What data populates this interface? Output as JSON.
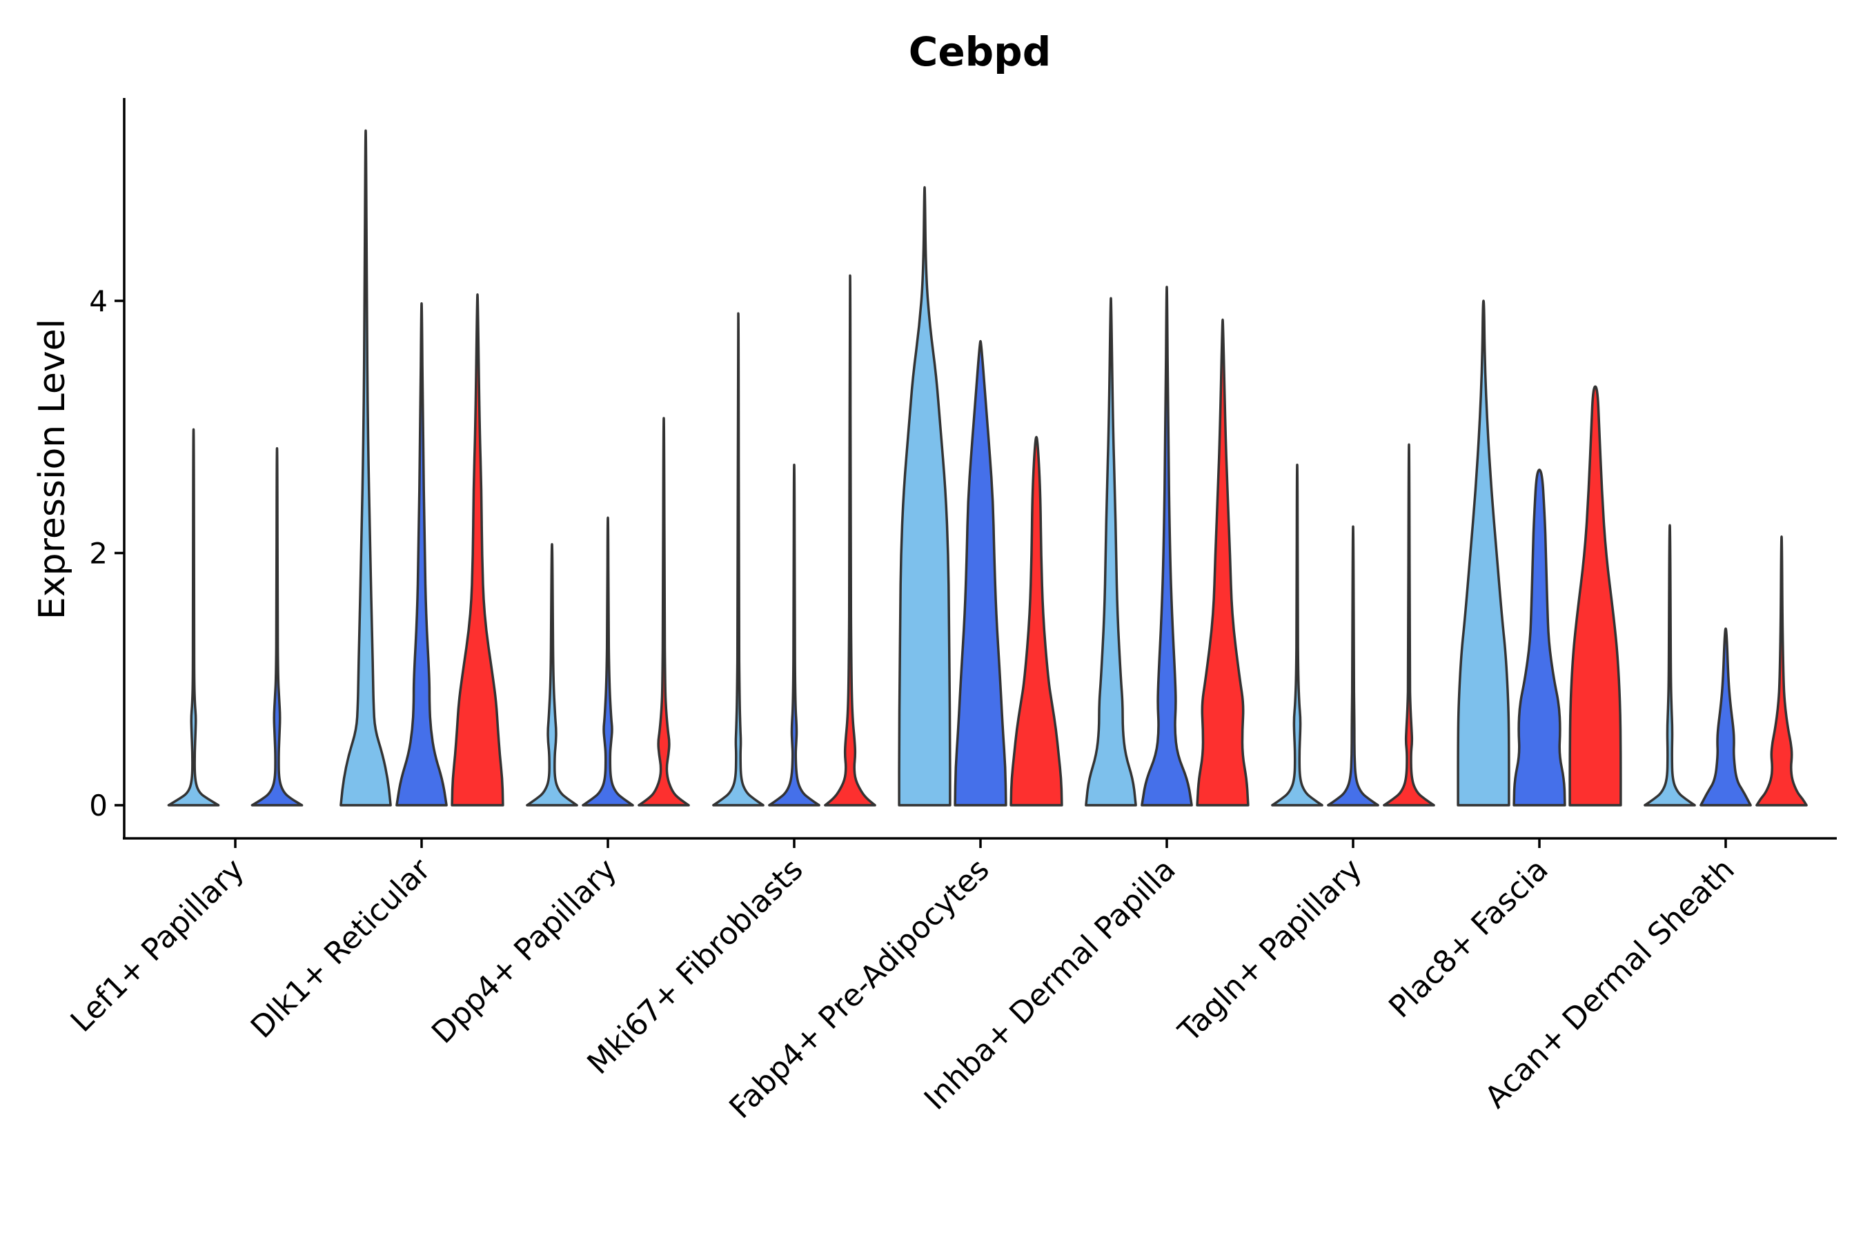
{
  "chart_data": {
    "type": "violin",
    "title": "Cebpd",
    "xlabel": "",
    "ylabel": "Expression Level",
    "ylim": [
      -0.27,
      5.6
    ],
    "yticks": [
      0,
      2,
      4
    ],
    "colors": {
      "group1": "#7dc0ec",
      "group2": "#4570ea",
      "group3": "#fd302f",
      "outline": "#333333",
      "axis": "#000000"
    },
    "categories": [
      "Lef1+ Papillary",
      "Dlk1+ Reticular",
      "Dpp4+ Papillary",
      "Mki67+ Fibroblasts",
      "Fabp4+ Pre-Adipocytes",
      "Inhba+ Dermal Papilla",
      "Tagln+ Papillary",
      "Plac8+ Fascia",
      "Acan+ Dermal Sheath"
    ],
    "violins": [
      {
        "cat": 0,
        "group": 1,
        "max": 2.98,
        "profile": [
          [
            0,
            0.95
          ],
          [
            0.05,
            0.55
          ],
          [
            0.1,
            0.2
          ],
          [
            0.2,
            0.05
          ],
          [
            0.4,
            0.04
          ],
          [
            0.6,
            0.08
          ],
          [
            0.7,
            0.09
          ],
          [
            0.8,
            0.05
          ],
          [
            1.0,
            0.025
          ],
          [
            1.5,
            0.02
          ],
          [
            2.98,
            0.01
          ]
        ]
      },
      {
        "cat": 0,
        "group": 2,
        "max": 2.83,
        "profile": [
          [
            0,
            0.95
          ],
          [
            0.05,
            0.55
          ],
          [
            0.1,
            0.25
          ],
          [
            0.2,
            0.07
          ],
          [
            0.4,
            0.06
          ],
          [
            0.55,
            0.09
          ],
          [
            0.7,
            0.12
          ],
          [
            0.85,
            0.08
          ],
          [
            1.0,
            0.04
          ],
          [
            1.5,
            0.02
          ],
          [
            2.83,
            0.01
          ]
        ]
      },
      {
        "cat": 1,
        "group": 1,
        "max": 5.35,
        "profile": [
          [
            0,
            0.95
          ],
          [
            0.2,
            0.85
          ],
          [
            0.4,
            0.65
          ],
          [
            0.6,
            0.35
          ],
          [
            0.8,
            0.3
          ],
          [
            1.0,
            0.28
          ],
          [
            1.3,
            0.25
          ],
          [
            2.0,
            0.17
          ],
          [
            3.0,
            0.08
          ],
          [
            4.0,
            0.04
          ],
          [
            5.35,
            0.01
          ]
        ]
      },
      {
        "cat": 1,
        "group": 2,
        "max": 3.98,
        "profile": [
          [
            0,
            0.95
          ],
          [
            0.2,
            0.8
          ],
          [
            0.4,
            0.5
          ],
          [
            0.6,
            0.35
          ],
          [
            0.8,
            0.3
          ],
          [
            1.0,
            0.3
          ],
          [
            1.5,
            0.17
          ],
          [
            2.0,
            0.12
          ],
          [
            3.0,
            0.05
          ],
          [
            3.98,
            0.01
          ]
        ]
      },
      {
        "cat": 1,
        "group": 3,
        "max": 4.05,
        "profile": [
          [
            0,
            0.97
          ],
          [
            0.2,
            0.95
          ],
          [
            0.4,
            0.85
          ],
          [
            0.6,
            0.78
          ],
          [
            0.8,
            0.72
          ],
          [
            1.0,
            0.6
          ],
          [
            1.5,
            0.25
          ],
          [
            2.0,
            0.17
          ],
          [
            2.5,
            0.15
          ],
          [
            3.0,
            0.08
          ],
          [
            4.05,
            0.01
          ]
        ]
      },
      {
        "cat": 2,
        "group": 1,
        "max": 2.07,
        "profile": [
          [
            0,
            0.95
          ],
          [
            0.05,
            0.6
          ],
          [
            0.1,
            0.3
          ],
          [
            0.2,
            0.1
          ],
          [
            0.4,
            0.1
          ],
          [
            0.5,
            0.15
          ],
          [
            0.6,
            0.16
          ],
          [
            0.7,
            0.12
          ],
          [
            1.0,
            0.05
          ],
          [
            1.5,
            0.03
          ],
          [
            2.07,
            0.01
          ]
        ]
      },
      {
        "cat": 2,
        "group": 2,
        "max": 2.28,
        "profile": [
          [
            0,
            0.95
          ],
          [
            0.05,
            0.6
          ],
          [
            0.1,
            0.3
          ],
          [
            0.2,
            0.1
          ],
          [
            0.4,
            0.08
          ],
          [
            0.5,
            0.12
          ],
          [
            0.6,
            0.17
          ],
          [
            0.7,
            0.12
          ],
          [
            1.0,
            0.05
          ],
          [
            1.5,
            0.02
          ],
          [
            2.28,
            0.01
          ]
        ]
      },
      {
        "cat": 2,
        "group": 3,
        "max": 3.07,
        "profile": [
          [
            0,
            0.95
          ],
          [
            0.05,
            0.6
          ],
          [
            0.1,
            0.35
          ],
          [
            0.2,
            0.15
          ],
          [
            0.3,
            0.1
          ],
          [
            0.4,
            0.18
          ],
          [
            0.5,
            0.22
          ],
          [
            0.6,
            0.15
          ],
          [
            0.8,
            0.07
          ],
          [
            1.0,
            0.05
          ],
          [
            1.5,
            0.03
          ],
          [
            3.07,
            0.01
          ]
        ]
      },
      {
        "cat": 3,
        "group": 1,
        "max": 3.9,
        "profile": [
          [
            0,
            0.95
          ],
          [
            0.05,
            0.6
          ],
          [
            0.1,
            0.3
          ],
          [
            0.2,
            0.1
          ],
          [
            0.4,
            0.08
          ],
          [
            0.5,
            0.1
          ],
          [
            0.6,
            0.08
          ],
          [
            0.8,
            0.05
          ],
          [
            1.5,
            0.02
          ],
          [
            3.9,
            0.01
          ]
        ]
      },
      {
        "cat": 3,
        "group": 2,
        "max": 2.7,
        "profile": [
          [
            0,
            0.95
          ],
          [
            0.05,
            0.6
          ],
          [
            0.1,
            0.3
          ],
          [
            0.2,
            0.1
          ],
          [
            0.4,
            0.05
          ],
          [
            0.5,
            0.08
          ],
          [
            0.6,
            0.1
          ],
          [
            0.8,
            0.04
          ],
          [
            1.5,
            0.02
          ],
          [
            2.7,
            0.01
          ]
        ]
      },
      {
        "cat": 3,
        "group": 3,
        "max": 4.2,
        "profile": [
          [
            0,
            0.95
          ],
          [
            0.05,
            0.65
          ],
          [
            0.1,
            0.45
          ],
          [
            0.2,
            0.2
          ],
          [
            0.3,
            0.15
          ],
          [
            0.4,
            0.2
          ],
          [
            0.5,
            0.18
          ],
          [
            0.7,
            0.09
          ],
          [
            1.0,
            0.05
          ],
          [
            2.0,
            0.02
          ],
          [
            4.2,
            0.01
          ]
        ]
      },
      {
        "cat": 4,
        "group": 1,
        "max": 4.9,
        "profile": [
          [
            0,
            0.97
          ],
          [
            0.5,
            0.97
          ],
          [
            1.0,
            0.95
          ],
          [
            1.5,
            0.93
          ],
          [
            2.0,
            0.9
          ],
          [
            2.5,
            0.8
          ],
          [
            3.0,
            0.6
          ],
          [
            3.4,
            0.45
          ],
          [
            3.8,
            0.2
          ],
          [
            4.2,
            0.05
          ],
          [
            4.9,
            0.01
          ]
        ]
      },
      {
        "cat": 4,
        "group": 2,
        "max": 3.68,
        "profile": [
          [
            0,
            0.97
          ],
          [
            0.3,
            0.95
          ],
          [
            0.6,
            0.85
          ],
          [
            1.0,
            0.75
          ],
          [
            1.5,
            0.6
          ],
          [
            2.0,
            0.52
          ],
          [
            2.4,
            0.48
          ],
          [
            2.8,
            0.35
          ],
          [
            3.2,
            0.2
          ],
          [
            3.68,
            0.02
          ]
        ]
      },
      {
        "cat": 4,
        "group": 3,
        "max": 2.92,
        "profile": [
          [
            0,
            0.97
          ],
          [
            0.2,
            0.95
          ],
          [
            0.4,
            0.85
          ],
          [
            0.6,
            0.75
          ],
          [
            0.8,
            0.6
          ],
          [
            1.0,
            0.45
          ],
          [
            1.5,
            0.25
          ],
          [
            2.0,
            0.18
          ],
          [
            2.5,
            0.15
          ],
          [
            2.92,
            0.04
          ]
        ]
      },
      {
        "cat": 5,
        "group": 1,
        "max": 4.02,
        "profile": [
          [
            0,
            0.95
          ],
          [
            0.2,
            0.85
          ],
          [
            0.4,
            0.55
          ],
          [
            0.6,
            0.45
          ],
          [
            0.8,
            0.45
          ],
          [
            1.0,
            0.38
          ],
          [
            1.5,
            0.25
          ],
          [
            2.0,
            0.2
          ],
          [
            2.5,
            0.15
          ],
          [
            3.0,
            0.08
          ],
          [
            4.02,
            0.01
          ]
        ]
      },
      {
        "cat": 5,
        "group": 2,
        "max": 4.11,
        "profile": [
          [
            0,
            0.95
          ],
          [
            0.2,
            0.8
          ],
          [
            0.4,
            0.4
          ],
          [
            0.6,
            0.3
          ],
          [
            0.8,
            0.35
          ],
          [
            1.0,
            0.32
          ],
          [
            1.5,
            0.2
          ],
          [
            2.0,
            0.12
          ],
          [
            3.0,
            0.05
          ],
          [
            4.11,
            0.01
          ]
        ]
      },
      {
        "cat": 5,
        "group": 3,
        "max": 3.85,
        "profile": [
          [
            0,
            0.97
          ],
          [
            0.2,
            0.92
          ],
          [
            0.4,
            0.75
          ],
          [
            0.6,
            0.75
          ],
          [
            0.8,
            0.8
          ],
          [
            1.0,
            0.65
          ],
          [
            1.5,
            0.35
          ],
          [
            2.0,
            0.28
          ],
          [
            2.5,
            0.18
          ],
          [
            3.0,
            0.1
          ],
          [
            3.85,
            0.01
          ]
        ]
      },
      {
        "cat": 6,
        "group": 1,
        "max": 2.7,
        "profile": [
          [
            0,
            0.95
          ],
          [
            0.05,
            0.6
          ],
          [
            0.1,
            0.3
          ],
          [
            0.2,
            0.1
          ],
          [
            0.4,
            0.08
          ],
          [
            0.6,
            0.12
          ],
          [
            0.7,
            0.12
          ],
          [
            0.8,
            0.08
          ],
          [
            1.0,
            0.04
          ],
          [
            1.5,
            0.02
          ],
          [
            2.7,
            0.01
          ]
        ]
      },
      {
        "cat": 6,
        "group": 2,
        "max": 2.21,
        "profile": [
          [
            0,
            0.95
          ],
          [
            0.05,
            0.6
          ],
          [
            0.1,
            0.3
          ],
          [
            0.2,
            0.1
          ],
          [
            0.4,
            0.05
          ],
          [
            0.6,
            0.05
          ],
          [
            0.8,
            0.04
          ],
          [
            1.0,
            0.03
          ],
          [
            2.21,
            0.01
          ]
        ]
      },
      {
        "cat": 6,
        "group": 3,
        "max": 2.86,
        "profile": [
          [
            0,
            0.95
          ],
          [
            0.05,
            0.6
          ],
          [
            0.1,
            0.3
          ],
          [
            0.2,
            0.1
          ],
          [
            0.4,
            0.07
          ],
          [
            0.5,
            0.12
          ],
          [
            0.6,
            0.1
          ],
          [
            0.8,
            0.05
          ],
          [
            1.0,
            0.03
          ],
          [
            2.86,
            0.01
          ]
        ]
      },
      {
        "cat": 7,
        "group": 1,
        "max": 4.0,
        "profile": [
          [
            0,
            0.97
          ],
          [
            0.5,
            0.97
          ],
          [
            0.8,
            0.95
          ],
          [
            1.2,
            0.85
          ],
          [
            1.5,
            0.7
          ],
          [
            2.0,
            0.5
          ],
          [
            2.5,
            0.3
          ],
          [
            3.0,
            0.15
          ],
          [
            3.5,
            0.05
          ],
          [
            4.0,
            0.02
          ]
        ]
      },
      {
        "cat": 7,
        "group": 2,
        "max": 2.66,
        "profile": [
          [
            0,
            0.97
          ],
          [
            0.2,
            0.95
          ],
          [
            0.4,
            0.75
          ],
          [
            0.6,
            0.8
          ],
          [
            0.8,
            0.75
          ],
          [
            1.0,
            0.55
          ],
          [
            1.3,
            0.35
          ],
          [
            1.6,
            0.3
          ],
          [
            2.0,
            0.25
          ],
          [
            2.3,
            0.2
          ],
          [
            2.66,
            0.1
          ]
        ]
      },
      {
        "cat": 7,
        "group": 3,
        "max": 3.32,
        "profile": [
          [
            0,
            0.97
          ],
          [
            0.4,
            0.97
          ],
          [
            0.8,
            0.95
          ],
          [
            1.2,
            0.85
          ],
          [
            1.5,
            0.7
          ],
          [
            2.0,
            0.4
          ],
          [
            2.5,
            0.25
          ],
          [
            3.0,
            0.15
          ],
          [
            3.32,
            0.08
          ]
        ]
      },
      {
        "cat": 8,
        "group": 1,
        "max": 2.22,
        "profile": [
          [
            0,
            0.95
          ],
          [
            0.05,
            0.6
          ],
          [
            0.1,
            0.3
          ],
          [
            0.2,
            0.1
          ],
          [
            0.4,
            0.08
          ],
          [
            0.6,
            0.1
          ],
          [
            0.8,
            0.06
          ],
          [
            1.0,
            0.04
          ],
          [
            1.5,
            0.03
          ],
          [
            2.22,
            0.01
          ]
        ]
      },
      {
        "cat": 8,
        "group": 2,
        "max": 1.4,
        "profile": [
          [
            0,
            0.95
          ],
          [
            0.1,
            0.7
          ],
          [
            0.2,
            0.4
          ],
          [
            0.4,
            0.3
          ],
          [
            0.5,
            0.32
          ],
          [
            0.6,
            0.3
          ],
          [
            0.8,
            0.18
          ],
          [
            1.0,
            0.1
          ],
          [
            1.4,
            0.03
          ]
        ]
      },
      {
        "cat": 8,
        "group": 3,
        "max": 2.13,
        "profile": [
          [
            0,
            0.95
          ],
          [
            0.05,
            0.8
          ],
          [
            0.1,
            0.6
          ],
          [
            0.2,
            0.4
          ],
          [
            0.3,
            0.35
          ],
          [
            0.4,
            0.4
          ],
          [
            0.5,
            0.35
          ],
          [
            0.6,
            0.25
          ],
          [
            0.8,
            0.12
          ],
          [
            1.0,
            0.07
          ],
          [
            1.5,
            0.03
          ],
          [
            2.13,
            0.01
          ]
        ]
      }
    ]
  }
}
